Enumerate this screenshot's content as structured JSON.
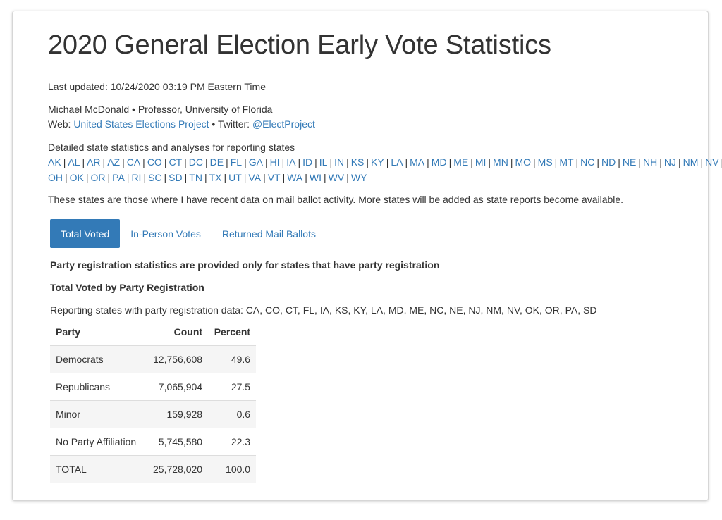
{
  "page": {
    "title": "2020 General Election Early Vote Statistics",
    "last_updated": "Last updated: 10/24/2020 03:19 PM Eastern Time",
    "author_line": "Michael McDonald • Professor, University of Florida",
    "web_label": "Web: ",
    "web_link": "United States Elections Project",
    "twitter_label": " • Twitter: ",
    "twitter_link": "@ElectProject",
    "states_intro": "Detailed state statistics and analyses for reporting states",
    "states_row1": [
      "AK",
      "AL",
      "AR",
      "AZ",
      "CA",
      "CO",
      "CT",
      "DC",
      "DE",
      "FL",
      "GA",
      "HI",
      "IA",
      "ID",
      "IL",
      "IN",
      "KS",
      "KY",
      "LA",
      "MA",
      "MD",
      "ME",
      "MI",
      "MN",
      "MO",
      "MS",
      "MT",
      "NC",
      "ND",
      "NE",
      "NH",
      "NJ",
      "NM",
      "NV"
    ],
    "states_row2": [
      "OH",
      "OK",
      "OR",
      "PA",
      "RI",
      "SC",
      "SD",
      "TN",
      "TX",
      "UT",
      "VA",
      "VT",
      "WA",
      "WI",
      "WV",
      "WY"
    ],
    "separator": "|",
    "states_note": "These states are those where I have recent data on mail ballot activity. More states will be added as state reports become available."
  },
  "tabs": [
    {
      "label": "Total Voted",
      "active": true
    },
    {
      "label": "In-Person Votes",
      "active": false
    },
    {
      "label": "Returned Mail Ballots",
      "active": false
    }
  ],
  "content": {
    "registration_note": "Party registration statistics are provided only for states that have party registration",
    "section_heading": "Total Voted by Party Registration",
    "reporting_states": "Reporting states with party registration data: CA, CO, CT, FL, IA, KS, KY, LA, MD, ME, NC, NE, NJ, NM, NV, OK, OR, PA, SD"
  },
  "table": {
    "headers": {
      "party": "Party",
      "count": "Count",
      "percent": "Percent"
    },
    "rows": [
      {
        "party": "Democrats",
        "count": "12,756,608",
        "percent": "49.6"
      },
      {
        "party": "Republicans",
        "count": "7,065,904",
        "percent": "27.5"
      },
      {
        "party": "Minor",
        "count": "159,928",
        "percent": "0.6"
      },
      {
        "party": "No Party Affiliation",
        "count": "5,745,580",
        "percent": "22.3"
      },
      {
        "party": "TOTAL",
        "count": "25,728,020",
        "percent": "100.0"
      }
    ]
  },
  "colors": {
    "link": "#337ab7",
    "active_tab_bg": "#337ab7",
    "stripe": "#f5f5f5"
  }
}
